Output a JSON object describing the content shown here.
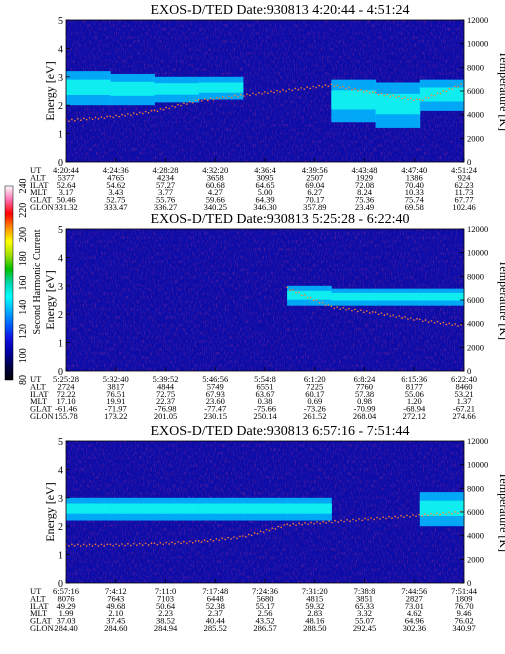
{
  "colorbar": {
    "label": "Second Harmonic Current",
    "ticks": [
      "240",
      "220",
      "200",
      "180",
      "160",
      "140",
      "120",
      "100",
      "80"
    ],
    "colors": [
      "#ffffff",
      "#ff6fb0",
      "#ff0000",
      "#ff8c00",
      "#ffff00",
      "#a0e000",
      "#00c000",
      "#00d8b0",
      "#00ffff",
      "#00b0ff",
      "#0060ff",
      "#1010e0",
      "#0000a0",
      "#00004a",
      "#000000"
    ]
  },
  "panels": [
    {
      "title": "EXOS-D/TED   Date:930813  4:20:44 - 4:51:24",
      "ylabel": "Energy [eV]",
      "y2label": "Temperature [K]",
      "yticks": [
        "5",
        "4",
        "3",
        "2",
        "1",
        "0"
      ],
      "y2ticks": [
        "12000",
        "10000",
        "8000",
        "6000",
        "4000",
        "2000",
        "0"
      ],
      "table": {
        "labels": [
          "UT",
          "ALT",
          "ILAT",
          "MLT",
          "GLAT",
          "GLON"
        ],
        "cols": [
          [
            "4:20:44",
            "5377",
            "52.64",
            "3.17",
            "50.46",
            "331.32"
          ],
          [
            "4:24:36",
            "4765",
            "54.62",
            "3.43",
            "52.75",
            "333.47"
          ],
          [
            "4:28:28",
            "4234",
            "57.27",
            "3.77",
            "55.76",
            "336.27"
          ],
          [
            "4:32:20",
            "3658",
            "60.68",
            "4.27",
            "59.66",
            "340.25"
          ],
          [
            "4:36:4",
            "3095",
            "64.65",
            "5.00",
            "64.39",
            "346.30"
          ],
          [
            "4:39:56",
            "2507",
            "69.04",
            "6.27",
            "70.17",
            "357.89"
          ],
          [
            "4:43:48",
            "1929",
            "72.08",
            "8.24",
            "75.36",
            "23.49"
          ],
          [
            "4:47:40",
            "1386",
            "70.40",
            "10.33",
            "75.74",
            "69.58"
          ],
          [
            "4:51:24",
            "924",
            "62.23",
            "11.73",
            "67.77",
            "102.46"
          ]
        ]
      }
    },
    {
      "title": "EXOS-D/TED   Date:930813  5:25:28 - 6:22:40",
      "ylabel": "Energy [eV]",
      "y2label": "Temperature [K]",
      "yticks": [
        "5",
        "4",
        "3",
        "2",
        "1",
        "0"
      ],
      "y2ticks": [
        "12000",
        "10000",
        "8000",
        "6000",
        "4000",
        "2000",
        "0"
      ],
      "table": {
        "labels": [
          "UT",
          "ALT",
          "ILAT",
          "MLT",
          "GLAT",
          "GLON"
        ],
        "cols": [
          [
            "5:25:28",
            "2724",
            "72.22",
            "17.10",
            "-61.46",
            "155.78"
          ],
          [
            "5:32:40",
            "3817",
            "76.51",
            "19.91",
            "-71.97",
            "173.22"
          ],
          [
            "5:39:52",
            "4844",
            "72.75",
            "22.37",
            "-76.98",
            "201.05"
          ],
          [
            "5:46:56",
            "5749",
            "67.93",
            "23.60",
            "-77.47",
            "230.15"
          ],
          [
            "5:54:8",
            "6551",
            "63.67",
            "0.38",
            "-75.66",
            "250.14"
          ],
          [
            "6:1:20",
            "7225",
            "60.17",
            "0.69",
            "-73.26",
            "261.52"
          ],
          [
            "6:8:24",
            "7760",
            "57.38",
            "0.98",
            "-70.99",
            "268.04"
          ],
          [
            "6:15:36",
            "8177",
            "55.06",
            "1.20",
            "-68.94",
            "272.12"
          ],
          [
            "6:22:40",
            "8460",
            "53.21",
            "1.37",
            "-67.21",
            "274.66"
          ]
        ]
      }
    },
    {
      "title": "EXOS-D/TED   Date:930813  6:57:16 - 7:51:44",
      "ylabel": "Energy [eV]",
      "y2label": "Temperature [K]",
      "yticks": [
        "5",
        "4",
        "3",
        "2",
        "1",
        "0"
      ],
      "y2ticks": [
        "12000",
        "10000",
        "8000",
        "6000",
        "4000",
        "2000",
        "0"
      ],
      "table": {
        "labels": [
          "UT",
          "ALT",
          "ILAT",
          "MLT",
          "GLAT",
          "GLON"
        ],
        "cols": [
          [
            "6:57:16",
            "8076",
            "49.29",
            "1.99",
            "37.03",
            "284.40"
          ],
          [
            "7:4:12",
            "7643",
            "49.68",
            "2.10",
            "37.45",
            "284.60"
          ],
          [
            "7:11:0",
            "7103",
            "50.64",
            "2.23",
            "38.52",
            "284.94"
          ],
          [
            "7:17:48",
            "6448",
            "52.38",
            "2.37",
            "40.44",
            "285.52"
          ],
          [
            "7:24:36",
            "5680",
            "55.17",
            "2.56",
            "43.52",
            "286.57"
          ],
          [
            "7:31:20",
            "4815",
            "59.32",
            "2.83",
            "48.16",
            "288.50"
          ],
          [
            "7:38:8",
            "3851",
            "65.33",
            "3.32",
            "55.07",
            "292.45"
          ],
          [
            "7:44:56",
            "2827",
            "73.01",
            "4.62",
            "64.96",
            "302.36"
          ],
          [
            "7:51:44",
            "1809",
            "76.70",
            "9.46",
            "76.02",
            "340.97"
          ]
        ]
      }
    }
  ],
  "chart_data": [
    {
      "type": "heatmap",
      "title": "EXOS-D/TED   Date:930813  4:20:44 - 4:51:24",
      "xlabel": "UT",
      "ylabel": "Energy [eV]",
      "y2label": "Temperature [K]",
      "ylim": [
        0,
        5
      ],
      "y2lim": [
        0,
        12000
      ],
      "x": [
        "4:20:44",
        "4:24:36",
        "4:28:28",
        "4:32:20",
        "4:36:4",
        "4:39:56",
        "4:43:48",
        "4:47:40",
        "4:51:24"
      ],
      "colorbar_label": "Second Harmonic Current",
      "colorbar_range": [
        80,
        240
      ],
      "temperature_trace_k": [
        3500,
        3800,
        4300,
        5200,
        null,
        null,
        6500,
        5800,
        5200,
        6600
      ],
      "peak_energy_band_ev": [
        [
          2.0,
          3.2
        ],
        [
          2.0,
          3.1
        ],
        [
          2.1,
          3.0
        ],
        [
          2.2,
          3.0
        ],
        null,
        null,
        [
          1.4,
          2.9
        ],
        [
          1.2,
          2.8
        ],
        [
          1.8,
          2.9
        ]
      ],
      "legend": "none",
      "grid": false
    },
    {
      "type": "heatmap",
      "title": "EXOS-D/TED   Date:930813  5:25:28 - 6:22:40",
      "xlabel": "UT",
      "ylabel": "Energy [eV]",
      "y2label": "Temperature [K]",
      "ylim": [
        0,
        5
      ],
      "y2lim": [
        0,
        12000
      ],
      "x": [
        "5:25:28",
        "5:32:40",
        "5:39:52",
        "5:46:56",
        "5:54:8",
        "6:1:20",
        "6:8:24",
        "6:15:36",
        "6:22:40"
      ],
      "colorbar_label": "Second Harmonic Current",
      "colorbar_range": [
        80,
        240
      ],
      "temperature_trace_k": [
        null,
        null,
        null,
        null,
        null,
        7000,
        5400,
        4900,
        4300,
        3800
      ],
      "peak_energy_band_ev": [
        null,
        null,
        null,
        null,
        null,
        [
          2.3,
          3.0
        ],
        [
          2.3,
          2.9
        ],
        [
          2.3,
          2.9
        ],
        [
          2.3,
          2.9
        ]
      ],
      "legend": "none",
      "grid": false
    },
    {
      "type": "heatmap",
      "title": "EXOS-D/TED   Date:930813  6:57:16 - 7:51:44",
      "xlabel": "UT",
      "ylabel": "Energy [eV]",
      "y2label": "Temperature [K]",
      "ylim": [
        0,
        5
      ],
      "y2lim": [
        0,
        12000
      ],
      "x": [
        "6:57:16",
        "7:4:12",
        "7:11:0",
        "7:17:48",
        "7:24:36",
        "7:31:20",
        "7:38:8",
        "7:44:56",
        "7:51:44"
      ],
      "colorbar_label": "Second Harmonic Current",
      "colorbar_range": [
        80,
        240
      ],
      "temperature_trace_k": [
        3200,
        3200,
        3300,
        3500,
        3900,
        4900,
        null,
        null,
        null,
        6000
      ],
      "peak_energy_band_ev": [
        [
          2.2,
          3.0
        ],
        [
          2.2,
          3.0
        ],
        [
          2.2,
          3.0
        ],
        [
          2.2,
          3.0
        ],
        [
          2.2,
          3.0
        ],
        [
          2.2,
          3.0
        ],
        null,
        null,
        [
          2.0,
          3.2
        ]
      ],
      "legend": "none",
      "grid": false
    }
  ]
}
